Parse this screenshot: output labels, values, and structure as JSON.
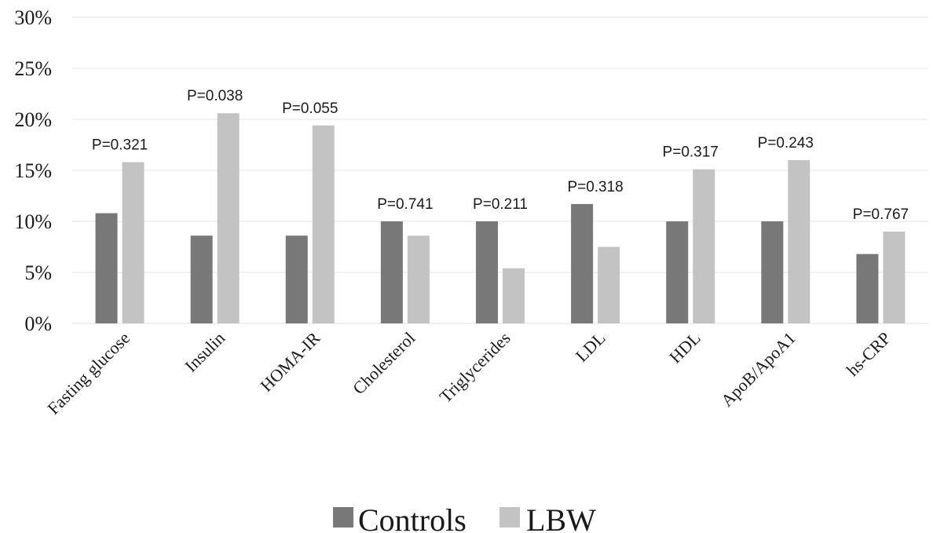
{
  "chart_data": {
    "type": "bar",
    "categories": [
      "Fasting glucose",
      "Insulin",
      "HOMA-IR",
      "Cholesterol",
      "Triglycerides",
      "LDL",
      "HDL",
      "ApoB/ApoA1",
      "hs-CRP"
    ],
    "series": [
      {
        "name": "Controls",
        "color": "#787878",
        "values": [
          10.8,
          8.6,
          8.6,
          10.0,
          10.0,
          11.7,
          10.0,
          10.0,
          6.8
        ]
      },
      {
        "name": "LBW",
        "color": "#c3c3c3",
        "values": [
          15.8,
          20.6,
          19.4,
          8.6,
          5.4,
          7.5,
          15.1,
          16.0,
          9.0
        ]
      }
    ],
    "p_values": [
      "P=0.321",
      "P=0.038",
      "P=0.055",
      "P=0.741",
      "P=0.211",
      "P=0.318",
      "P=0.317",
      "P=0.243",
      "P=0.767"
    ],
    "ylim": [
      0,
      30
    ],
    "yticks": [
      0,
      5,
      10,
      15,
      20,
      25,
      30
    ],
    "ytick_labels": [
      "0%",
      "5%",
      "10%",
      "15%",
      "20%",
      "25%",
      "30%"
    ],
    "title": "",
    "xlabel": "",
    "ylabel": "",
    "grid": true,
    "legend_position": "bottom"
  }
}
